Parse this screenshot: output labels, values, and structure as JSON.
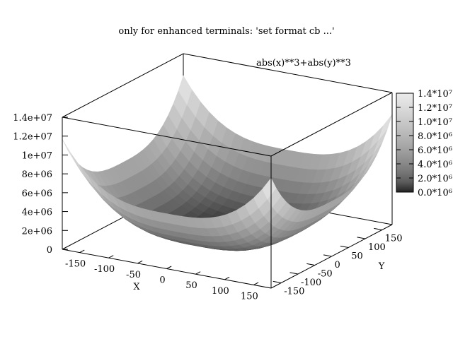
{
  "chart_data": {
    "type": "surface3d",
    "title": "only for enhanced terminals: 'set format cb ...'",
    "function_label": "abs(x)**3+abs(y)**3",
    "xlabel": "X",
    "ylabel": "Y",
    "zlabel": "",
    "xlim": [
      -180,
      180
    ],
    "ylim": [
      -180,
      180
    ],
    "zlim": [
      0,
      14000000
    ],
    "x_ticks": [
      "-150",
      "-100",
      "-50",
      "0",
      "50",
      "100",
      "150"
    ],
    "x_tick_values": [
      -150,
      -100,
      -50,
      0,
      50,
      100,
      150
    ],
    "y_ticks": [
      "-150",
      "-100",
      "-50",
      "0",
      "50",
      "100",
      "150"
    ],
    "y_tick_values": [
      -150,
      -100,
      -50,
      0,
      50,
      100,
      150
    ],
    "z_ticks": [
      "0",
      "2e+06",
      "4e+06",
      "6e+06",
      "8e+06",
      "1e+07",
      "1.2e+07",
      "1.4e+07"
    ],
    "z_tick_values": [
      0,
      2000000,
      4000000,
      6000000,
      8000000,
      10000000,
      12000000,
      14000000
    ],
    "colorbar_ticks": [
      "0.0*10^6",
      "2.0*10^6",
      "4.0*10^6",
      "6.0*10^6",
      "8.0*10^6",
      "1.0*10^7",
      "1.2*10^7",
      "1.4*10^7"
    ],
    "colorbar_tick_values": [
      0,
      2000000,
      4000000,
      6000000,
      8000000,
      10000000,
      12000000,
      14000000
    ],
    "colorbar_tick_display": [
      "0.0*10⁶",
      "2.0*10⁶",
      "4.0*10⁶",
      "6.0*10⁶",
      "8.0*10⁶",
      "1.0*10⁷",
      "1.2*10⁷",
      "1.4*10⁷"
    ],
    "palette": "grayscale",
    "grid": false
  }
}
